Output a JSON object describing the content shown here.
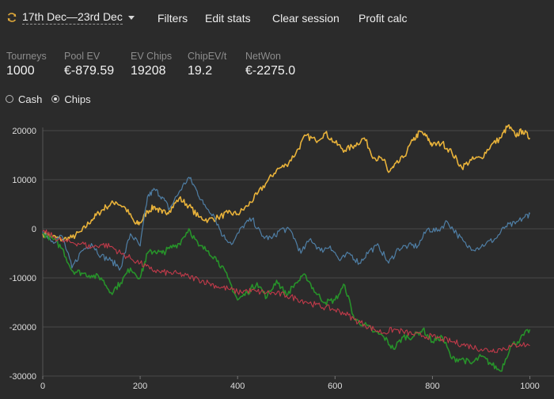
{
  "header": {
    "date_range": "17th Dec—23rd Dec",
    "menu": [
      "Filters",
      "Edit stats",
      "Clear session",
      "Profit calc"
    ]
  },
  "stats": [
    {
      "label": "Tourneys",
      "value": "1000"
    },
    {
      "label": "Pool EV",
      "value": "€-879.59"
    },
    {
      "label": "EV Chips",
      "value": "19208"
    },
    {
      "label": "ChipEV/t",
      "value": "19.2"
    },
    {
      "label": "NetWon",
      "value": "€-2275.0"
    }
  ],
  "mode": {
    "options": [
      "Cash",
      "Chips"
    ],
    "selected": "Chips"
  },
  "chart_data": {
    "type": "line",
    "xlim": [
      0,
      1030
    ],
    "ylim": [
      -30000,
      20000
    ],
    "x_ticks": [
      0,
      200,
      400,
      600,
      800,
      1000
    ],
    "y_ticks": [
      -30000,
      -20000,
      -10000,
      0,
      10000,
      20000
    ],
    "grid": "horizontal",
    "series": [
      {
        "color": "#e8b23a",
        "width": 1.6,
        "points": [
          [
            0,
            -1000
          ],
          [
            20,
            -1600
          ],
          [
            40,
            -2200
          ],
          [
            60,
            -1800
          ],
          [
            80,
            -500
          ],
          [
            100,
            1800
          ],
          [
            115,
            3200
          ],
          [
            130,
            4500
          ],
          [
            150,
            5500
          ],
          [
            170,
            4200
          ],
          [
            190,
            1000
          ],
          [
            200,
            1200
          ],
          [
            215,
            3600
          ],
          [
            230,
            4500
          ],
          [
            245,
            3200
          ],
          [
            260,
            3700
          ],
          [
            280,
            6200
          ],
          [
            300,
            4700
          ],
          [
            320,
            2400
          ],
          [
            340,
            1800
          ],
          [
            360,
            2300
          ],
          [
            380,
            3200
          ],
          [
            400,
            3000
          ],
          [
            420,
            4600
          ],
          [
            440,
            7000
          ],
          [
            460,
            9500
          ],
          [
            480,
            12000
          ],
          [
            500,
            13000
          ],
          [
            520,
            15500
          ],
          [
            540,
            19000
          ],
          [
            560,
            18000
          ],
          [
            580,
            19500
          ],
          [
            600,
            17500
          ],
          [
            620,
            16000
          ],
          [
            640,
            17000
          ],
          [
            660,
            18500
          ],
          [
            680,
            14500
          ],
          [
            700,
            14000
          ],
          [
            710,
            11500
          ],
          [
            720,
            12500
          ],
          [
            740,
            14500
          ],
          [
            760,
            18000
          ],
          [
            775,
            19800
          ],
          [
            790,
            18500
          ],
          [
            800,
            17000
          ],
          [
            820,
            17500
          ],
          [
            840,
            15500
          ],
          [
            860,
            12500
          ],
          [
            880,
            14000
          ],
          [
            900,
            14500
          ],
          [
            920,
            17000
          ],
          [
            940,
            18500
          ],
          [
            955,
            21000
          ],
          [
            970,
            19000
          ],
          [
            985,
            20000
          ],
          [
            1000,
            18500
          ]
        ]
      },
      {
        "color": "#4f7fa6",
        "width": 1.2,
        "points": [
          [
            0,
            -500
          ],
          [
            20,
            -2500
          ],
          [
            40,
            -1500
          ],
          [
            60,
            -8000
          ],
          [
            80,
            -4500
          ],
          [
            100,
            -3000
          ],
          [
            120,
            -5500
          ],
          [
            140,
            -6500
          ],
          [
            160,
            -8000
          ],
          [
            180,
            -1000
          ],
          [
            200,
            -3500
          ],
          [
            215,
            6500
          ],
          [
            230,
            8000
          ],
          [
            245,
            6500
          ],
          [
            260,
            4000
          ],
          [
            280,
            7500
          ],
          [
            300,
            10500
          ],
          [
            315,
            8000
          ],
          [
            330,
            5000
          ],
          [
            350,
            3000
          ],
          [
            370,
            -1500
          ],
          [
            390,
            -3000
          ],
          [
            410,
            500
          ],
          [
            430,
            2000
          ],
          [
            450,
            -1500
          ],
          [
            470,
            -2000
          ],
          [
            490,
            0
          ],
          [
            510,
            -500
          ],
          [
            530,
            -5000
          ],
          [
            550,
            -2000
          ],
          [
            570,
            -4500
          ],
          [
            590,
            -3500
          ],
          [
            610,
            -6500
          ],
          [
            630,
            -5000
          ],
          [
            650,
            -7000
          ],
          [
            670,
            -4500
          ],
          [
            690,
            -3500
          ],
          [
            710,
            -7000
          ],
          [
            730,
            -4000
          ],
          [
            750,
            -3500
          ],
          [
            770,
            -3500
          ],
          [
            790,
            0
          ],
          [
            810,
            -500
          ],
          [
            830,
            1500
          ],
          [
            850,
            -1000
          ],
          [
            870,
            -3500
          ],
          [
            890,
            -4000
          ],
          [
            910,
            -3000
          ],
          [
            930,
            -2000
          ],
          [
            950,
            500
          ],
          [
            970,
            1000
          ],
          [
            990,
            2500
          ],
          [
            1000,
            3000
          ]
        ]
      },
      {
        "color": "#27922a",
        "width": 1.6,
        "points": [
          [
            0,
            -1000
          ],
          [
            20,
            -2000
          ],
          [
            40,
            -4000
          ],
          [
            60,
            -8500
          ],
          [
            80,
            -9000
          ],
          [
            100,
            -9500
          ],
          [
            120,
            -10000
          ],
          [
            140,
            -13000
          ],
          [
            160,
            -11000
          ],
          [
            180,
            -8000
          ],
          [
            200,
            -10000
          ],
          [
            215,
            -5000
          ],
          [
            230,
            -4500
          ],
          [
            245,
            -5000
          ],
          [
            260,
            -4000
          ],
          [
            280,
            -3000
          ],
          [
            300,
            0
          ],
          [
            320,
            -3500
          ],
          [
            340,
            -4500
          ],
          [
            360,
            -6500
          ],
          [
            380,
            -10000
          ],
          [
            400,
            -14500
          ],
          [
            420,
            -13000
          ],
          [
            440,
            -11000
          ],
          [
            460,
            -14000
          ],
          [
            480,
            -10500
          ],
          [
            500,
            -13500
          ],
          [
            520,
            -11000
          ],
          [
            540,
            -9500
          ],
          [
            560,
            -13000
          ],
          [
            580,
            -15000
          ],
          [
            600,
            -14500
          ],
          [
            620,
            -11500
          ],
          [
            640,
            -18500
          ],
          [
            660,
            -19500
          ],
          [
            680,
            -21000
          ],
          [
            700,
            -22000
          ],
          [
            720,
            -24500
          ],
          [
            740,
            -22000
          ],
          [
            760,
            -22000
          ],
          [
            780,
            -20500
          ],
          [
            800,
            -23000
          ],
          [
            820,
            -22000
          ],
          [
            840,
            -26500
          ],
          [
            860,
            -26500
          ],
          [
            880,
            -27500
          ],
          [
            900,
            -26000
          ],
          [
            920,
            -27500
          ],
          [
            940,
            -29000
          ],
          [
            960,
            -24000
          ],
          [
            980,
            -22500
          ],
          [
            1000,
            -20500
          ]
        ]
      },
      {
        "color": "#c23a4a",
        "width": 1.1,
        "points": [
          [
            0,
            -500
          ],
          [
            20,
            -1500
          ],
          [
            40,
            -2500
          ],
          [
            60,
            -2800
          ],
          [
            80,
            -3000
          ],
          [
            100,
            -3800
          ],
          [
            120,
            -3200
          ],
          [
            140,
            -3600
          ],
          [
            160,
            -5000
          ],
          [
            180,
            -6000
          ],
          [
            200,
            -7000
          ],
          [
            220,
            -8200
          ],
          [
            240,
            -8800
          ],
          [
            260,
            -9000
          ],
          [
            280,
            -9200
          ],
          [
            300,
            -9800
          ],
          [
            320,
            -10300
          ],
          [
            340,
            -11000
          ],
          [
            360,
            -11800
          ],
          [
            380,
            -12200
          ],
          [
            400,
            -12900
          ],
          [
            420,
            -12600
          ],
          [
            440,
            -12800
          ],
          [
            460,
            -13000
          ],
          [
            480,
            -13200
          ],
          [
            500,
            -13600
          ],
          [
            520,
            -14200
          ],
          [
            540,
            -14800
          ],
          [
            560,
            -15500
          ],
          [
            580,
            -16000
          ],
          [
            600,
            -16500
          ],
          [
            620,
            -17200
          ],
          [
            640,
            -18500
          ],
          [
            660,
            -19500
          ],
          [
            680,
            -20500
          ],
          [
            700,
            -21200
          ],
          [
            720,
            -20500
          ],
          [
            740,
            -21000
          ],
          [
            760,
            -21500
          ],
          [
            780,
            -21800
          ],
          [
            800,
            -22000
          ],
          [
            820,
            -22500
          ],
          [
            840,
            -23000
          ],
          [
            860,
            -23500
          ],
          [
            880,
            -24000
          ],
          [
            900,
            -24500
          ],
          [
            920,
            -24800
          ],
          [
            940,
            -24500
          ],
          [
            960,
            -24000
          ],
          [
            980,
            -23500
          ],
          [
            1000,
            -23800
          ]
        ]
      }
    ]
  }
}
